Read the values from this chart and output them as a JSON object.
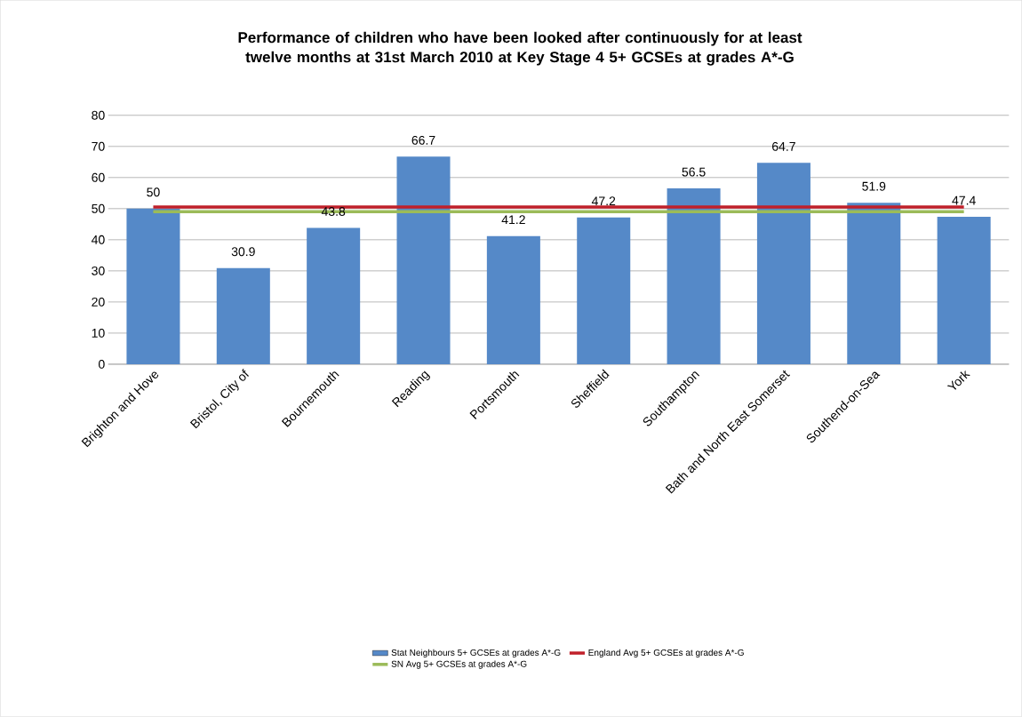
{
  "chart_data": {
    "type": "bar",
    "title": "Performance of children who have been looked after continuously for at least twelve months at 31st March 2010 at Key Stage 4 5+ GCSEs at grades A*-G",
    "categories": [
      "Brighton and Hove",
      "Bristol, City of",
      "Bournemouth",
      "Reading",
      "Portsmouth",
      "Sheffield",
      "Southampton",
      "Bath and North East Somerset",
      "Southend-on-Sea",
      "York"
    ],
    "series": [
      {
        "name": "Stat Neighbours 5+ GCSEs at grades A*-G",
        "color": "#5589c8",
        "values": [
          50,
          30.9,
          43.8,
          66.7,
          41.2,
          47.2,
          56.5,
          64.7,
          51.9,
          47.4
        ],
        "value_labels": [
          "50",
          "30.9",
          "43.8",
          "66.7",
          "41.2",
          "47.2",
          "56.5",
          "64.7",
          "51.9",
          "47.4"
        ]
      },
      {
        "name": "England Avg 5+ GCSEs at grades A*-G",
        "type": "line",
        "color": "#c0202a",
        "values": [
          50.5,
          50.5,
          50.5,
          50.5,
          50.5,
          50.5,
          50.5,
          50.5,
          50.5,
          50.5
        ]
      },
      {
        "name": "SN Avg 5+ GCSEs at grades A*-G",
        "type": "line",
        "color": "#9bbb59",
        "values": [
          49,
          49,
          49,
          49,
          49,
          49,
          49,
          49,
          49,
          49
        ]
      }
    ],
    "ylim": [
      0,
      80
    ],
    "yticks": [
      0,
      10,
      20,
      30,
      40,
      50,
      60,
      70,
      80
    ],
    "grid": "y",
    "legend": "bottom"
  }
}
